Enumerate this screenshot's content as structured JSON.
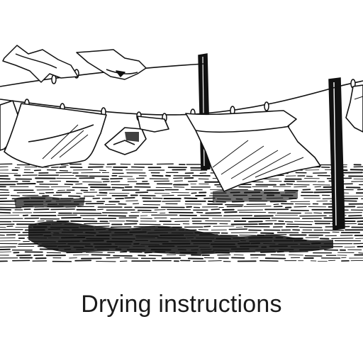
{
  "caption": {
    "text": "Drying instructions"
  },
  "illustration": {
    "subject": "clothesline-illustration",
    "ink_color": "#111111",
    "paper_color": "#ffffff"
  }
}
